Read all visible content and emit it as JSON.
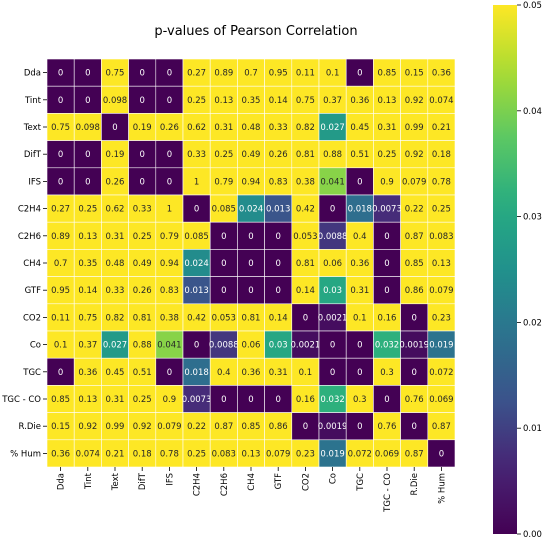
{
  "chart_data": {
    "type": "heatmap",
    "title": "p-values of Pearson Correlation",
    "rows": [
      "Dda",
      "Tint",
      "Text",
      "DifT",
      "IFS",
      "C2H4",
      "C2H6",
      "CH4",
      "GTF",
      "CO2",
      "Co",
      "TGC",
      "TGC - CO",
      "R.Die",
      "% Hum"
    ],
    "columns": [
      "Dda",
      "Tint",
      "Text",
      "DifT",
      "IFS",
      "C2H4",
      "C2H6",
      "CH4",
      "GTF",
      "CO2",
      "Co",
      "TGC",
      "TGC - CO",
      "R.Die",
      "% Hum"
    ],
    "values": [
      [
        "0",
        "0",
        "0.75",
        "0",
        "0",
        "0.27",
        "0.89",
        "0.7",
        "0.95",
        "0.11",
        "0.1",
        "0",
        "0.85",
        "0.15",
        "0.36"
      ],
      [
        "0",
        "0",
        "0.098",
        "0",
        "0",
        "0.25",
        "0.13",
        "0.35",
        "0.14",
        "0.75",
        "0.37",
        "0.36",
        "0.13",
        "0.92",
        "0.074"
      ],
      [
        "0.75",
        "0.098",
        "0",
        "0.19",
        "0.26",
        "0.62",
        "0.31",
        "0.48",
        "0.33",
        "0.82",
        "0.027",
        "0.45",
        "0.31",
        "0.99",
        "0.21"
      ],
      [
        "0",
        "0",
        "0.19",
        "0",
        "0",
        "0.33",
        "0.25",
        "0.49",
        "0.26",
        "0.81",
        "0.88",
        "0.51",
        "0.25",
        "0.92",
        "0.18"
      ],
      [
        "0",
        "0",
        "0.26",
        "0",
        "0",
        "1",
        "0.79",
        "0.94",
        "0.83",
        "0.38",
        "0.041",
        "0",
        "0.9",
        "0.079",
        "0.78"
      ],
      [
        "0.27",
        "0.25",
        "0.62",
        "0.33",
        "1",
        "0",
        "0.085",
        "0.024",
        "0.013",
        "0.42",
        "0",
        "0.018",
        "0.0073",
        "0.22",
        "0.25"
      ],
      [
        "0.89",
        "0.13",
        "0.31",
        "0.25",
        "0.79",
        "0.085",
        "0",
        "0",
        "0",
        "0.053",
        "0.0088",
        "0.4",
        "0",
        "0.87",
        "0.083"
      ],
      [
        "0.7",
        "0.35",
        "0.48",
        "0.49",
        "0.94",
        "0.024",
        "0",
        "0",
        "0",
        "0.81",
        "0.06",
        "0.36",
        "0",
        "0.85",
        "0.13"
      ],
      [
        "0.95",
        "0.14",
        "0.33",
        "0.26",
        "0.83",
        "0.013",
        "0",
        "0",
        "0",
        "0.14",
        "0.03",
        "0.31",
        "0",
        "0.86",
        "0.079"
      ],
      [
        "0.11",
        "0.75",
        "0.82",
        "0.81",
        "0.38",
        "0.42",
        "0.053",
        "0.81",
        "0.14",
        "0",
        "0.0021",
        "0.1",
        "0.16",
        "0",
        "0.23"
      ],
      [
        "0.1",
        "0.37",
        "0.027",
        "0.88",
        "0.041",
        "0",
        "0.0088",
        "0.06",
        "0.03",
        "0.0021",
        "0",
        "0",
        "0.032",
        "0.0019",
        "0.019"
      ],
      [
        "0",
        "0.36",
        "0.45",
        "0.51",
        "0",
        "0.018",
        "0.4",
        "0.36",
        "0.31",
        "0.1",
        "0",
        "0",
        "0.3",
        "0",
        "0.072"
      ],
      [
        "0.85",
        "0.13",
        "0.31",
        "0.25",
        "0.9",
        "0.0073",
        "0",
        "0",
        "0",
        "0.16",
        "0.032",
        "0.3",
        "0",
        "0.76",
        "0.069"
      ],
      [
        "0.15",
        "0.92",
        "0.99",
        "0.92",
        "0.079",
        "0.22",
        "0.87",
        "0.85",
        "0.86",
        "0",
        "0.0019",
        "0",
        "0.76",
        "0",
        "0.87"
      ],
      [
        "0.36",
        "0.074",
        "0.21",
        "0.18",
        "0.78",
        "0.25",
        "0.083",
        "0.13",
        "0.079",
        "0.23",
        "0.019",
        "0.072",
        "0.069",
        "0.87",
        "0"
      ]
    ],
    "color_scale": {
      "colormap": "viridis",
      "range": [
        0,
        0.05
      ],
      "ticks": [
        "0.00",
        "0.01",
        "0.02",
        "0.03",
        "0.04",
        "0.05"
      ]
    }
  }
}
